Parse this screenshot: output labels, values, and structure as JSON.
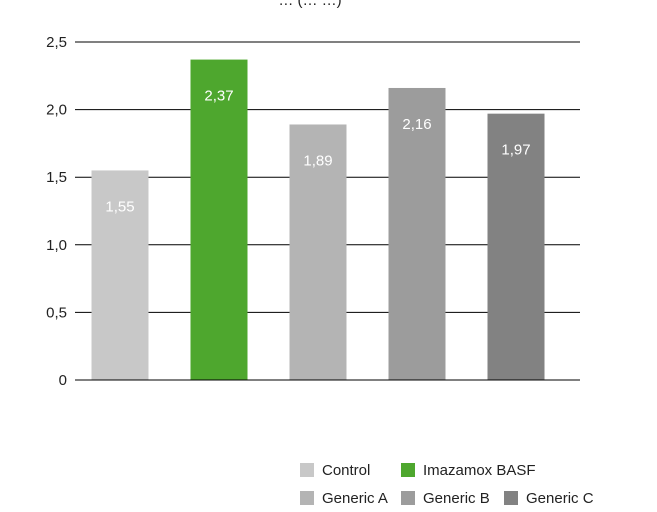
{
  "chart_data": {
    "type": "bar",
    "title": "… (… …)",
    "categories": [
      "Control",
      "Imazamox BASF",
      "Generic A",
      "Generic B",
      "Generic C"
    ],
    "values": [
      1.55,
      2.37,
      1.89,
      2.16,
      1.97
    ],
    "value_labels": [
      "1,55",
      "2,37",
      "1,89",
      "2,16",
      "1,97"
    ],
    "colors": [
      "#c8c8c8",
      "#4ea72e",
      "#b4b4b4",
      "#9c9c9c",
      "#828282"
    ],
    "ylim": [
      0,
      2.5
    ],
    "yticks": [
      0,
      0.5,
      1.0,
      1.5,
      2.0,
      2.5
    ],
    "ytick_labels": [
      "0",
      "0,5",
      "1,0",
      "1,5",
      "2,0",
      "2,5"
    ],
    "xlabel": "",
    "ylabel": "",
    "grid": true,
    "legend_position": "bottom-right",
    "legend": [
      [
        "Control",
        "Imazamox BASF"
      ],
      [
        "Generic A",
        "Generic B",
        "Generic C"
      ]
    ]
  }
}
